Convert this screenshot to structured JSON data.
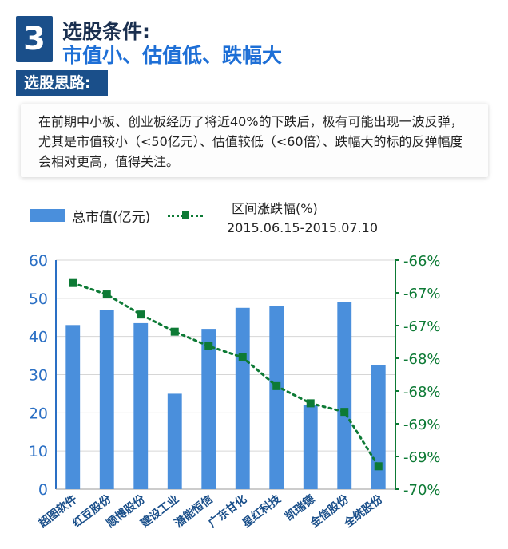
{
  "header": {
    "step_number": "3",
    "title_line1": "选股条件:",
    "title_line2": "市值小、估值低、跌幅大"
  },
  "subheading": "选股思路:",
  "description": "在前期中小板、创业板经历了将近40%的下跌后，极有可能出现一波反弹，尤其是市值较小（<50亿元）、估值较低（<60倍）、跌幅大的标的反弹幅度会相对更高，值得关注。",
  "legend": {
    "bar_label": "总市值(亿元)",
    "line_label": "区间涨跌幅(%)",
    "line_period": "2015.06.15-2015.07.10"
  },
  "colors": {
    "bar": "#4a8fdc",
    "line": "#0d7a35",
    "header_blue": "#1a4f8a",
    "title_blue": "#1e6fd6"
  },
  "chart_data": {
    "type": "bar",
    "categories": [
      "超图软件",
      "红豆股份",
      "顺博股份",
      "建设工业",
      "潜能恒信",
      "广东甘化",
      "星红科技",
      "凯瑞德",
      "金信股份",
      "全统股份"
    ],
    "series": [
      {
        "name": "总市值(亿元)",
        "type": "bar",
        "axis": "left",
        "values": [
          43,
          47,
          43.5,
          25,
          42,
          47.5,
          48,
          22,
          49,
          32.5
        ]
      },
      {
        "name": "区间涨跌幅(%)",
        "type": "line",
        "axis": "right",
        "values": [
          -66.4,
          -66.6,
          -66.95,
          -67.25,
          -67.5,
          -67.7,
          -68.2,
          -68.5,
          -68.65,
          -69.6
        ]
      }
    ],
    "left_axis": {
      "ylim": [
        0,
        60
      ],
      "ticks": [
        "0",
        "10",
        "20",
        "30",
        "40",
        "50",
        "60"
      ]
    },
    "right_axis": {
      "ylim": [
        -70,
        -66
      ],
      "ticks": [
        "-66%",
        "-67%",
        "-67%",
        "-68%",
        "-68%",
        "-69%",
        "-69%",
        "-70%"
      ]
    },
    "grid": true
  }
}
